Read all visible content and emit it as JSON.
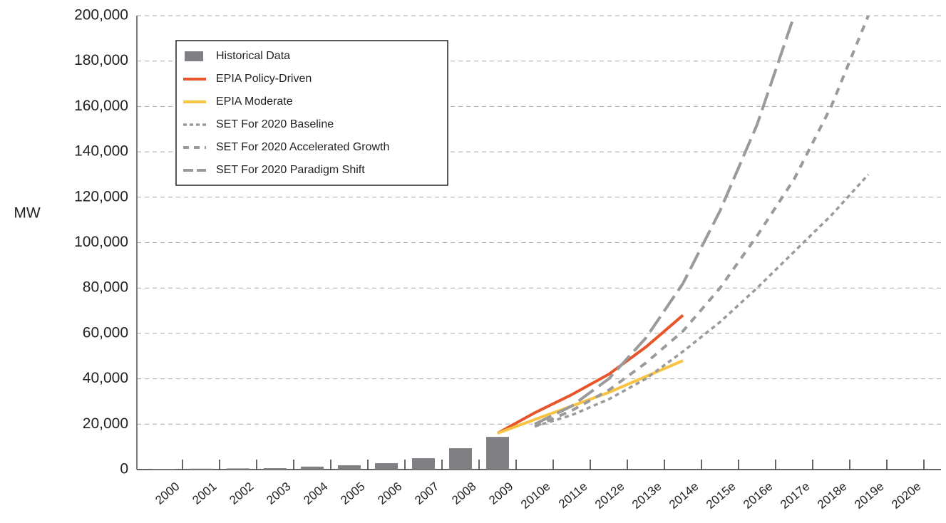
{
  "chart_data": {
    "type": "bar",
    "y_label": "MW",
    "categories": [
      "2000",
      "2001",
      "2002",
      "2003",
      "2004",
      "2005",
      "2006",
      "2007",
      "2008",
      "2009",
      "2010e",
      "2011e",
      "2012e",
      "2013e",
      "2014e",
      "2015e",
      "2016e",
      "2017e",
      "2018e",
      "2019e",
      "2020e"
    ],
    "series": [
      {
        "name": "Historical Data",
        "style": "bar",
        "color": "#7f7f84",
        "values": [
          300,
          400,
          500,
          600,
          1300,
          1900,
          2800,
          5000,
          9400,
          14400,
          null,
          null,
          null,
          null,
          null,
          null,
          null,
          null,
          null,
          null,
          null
        ]
      },
      {
        "name": "EPIA Policy-Driven",
        "style": "solid",
        "color": "#e8552a",
        "values": [
          null,
          null,
          null,
          null,
          null,
          null,
          null,
          null,
          null,
          16000,
          25000,
          33000,
          42000,
          54000,
          68000,
          null,
          null,
          null,
          null,
          null,
          null
        ]
      },
      {
        "name": "EPIA Moderate",
        "style": "solid",
        "color": "#f7c340",
        "values": [
          null,
          null,
          null,
          null,
          null,
          null,
          null,
          null,
          null,
          16000,
          22000,
          28000,
          34000,
          41000,
          48000,
          null,
          null,
          null,
          null,
          null,
          null
        ]
      },
      {
        "name": "SET For 2020 Baseline",
        "style": "dot",
        "color": "#9a9a9a",
        "values": [
          null,
          null,
          null,
          null,
          null,
          null,
          null,
          null,
          null,
          null,
          19000,
          24000,
          31000,
          40000,
          52000,
          65000,
          80000,
          96000,
          112000,
          130000,
          null
        ]
      },
      {
        "name": "SET For 2020 Accelerated Growth",
        "style": "dash",
        "color": "#9a9a9a",
        "values": [
          null,
          null,
          null,
          null,
          null,
          null,
          null,
          null,
          null,
          null,
          19000,
          26000,
          35000,
          47000,
          61000,
          80000,
          103000,
          128000,
          160000,
          200000,
          null
        ]
      },
      {
        "name": "SET For 2020 Paradigm Shift",
        "style": "longdash",
        "color": "#9a9a9a",
        "values": [
          null,
          null,
          null,
          null,
          null,
          null,
          null,
          null,
          null,
          null,
          20000,
          28000,
          40000,
          58000,
          82000,
          114000,
          152000,
          200000,
          null,
          null,
          null
        ]
      }
    ],
    "ylim": [
      0,
      200000
    ],
    "yticks": [
      0,
      {
        "value": 20000,
        "label": "20,000"
      },
      {
        "value": 40000,
        "label": "40,000"
      },
      {
        "value": 60000,
        "label": "60,000"
      },
      {
        "value": 80000,
        "label": "80,000"
      },
      {
        "value": 100000,
        "label": "100,000"
      },
      {
        "value": 120000,
        "label": "120,000"
      },
      {
        "value": 140000,
        "label": "140,000"
      },
      {
        "value": 160000,
        "label": "160,000"
      },
      {
        "value": 180000,
        "label": "180,000"
      },
      {
        "value": 200000,
        "label": "200,000"
      }
    ],
    "grid": true,
    "legend": "top-left"
  }
}
